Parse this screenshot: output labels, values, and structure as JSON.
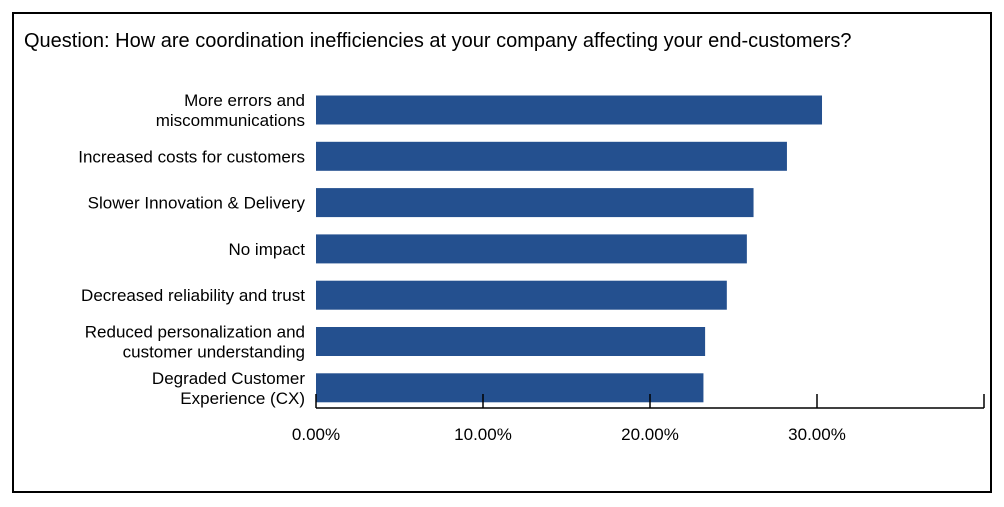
{
  "chart_data": {
    "type": "bar",
    "orientation": "horizontal",
    "title": "Question: How are coordination inefficiencies at your company affecting your end-customers?",
    "categories": [
      [
        "More errors and",
        "miscommunications"
      ],
      [
        "Increased costs for customers"
      ],
      [
        "Slower Innovation & Delivery"
      ],
      [
        "No impact"
      ],
      [
        "Decreased reliability and trust"
      ],
      [
        "Reduced personalization and",
        "customer understanding"
      ],
      [
        "Degraded Customer",
        "Experience (CX)"
      ]
    ],
    "values": [
      30.3,
      28.2,
      26.2,
      25.8,
      24.6,
      23.3,
      23.2
    ],
    "xlim": [
      0,
      40
    ],
    "xticks": [
      0,
      10,
      20,
      30
    ],
    "xtick_labels": [
      "0.00%",
      "10.00%",
      "20.00%",
      "30.00%"
    ],
    "xlabel": "",
    "ylabel": "",
    "bar_color": "#24508f",
    "grid": false,
    "legend": "none"
  }
}
